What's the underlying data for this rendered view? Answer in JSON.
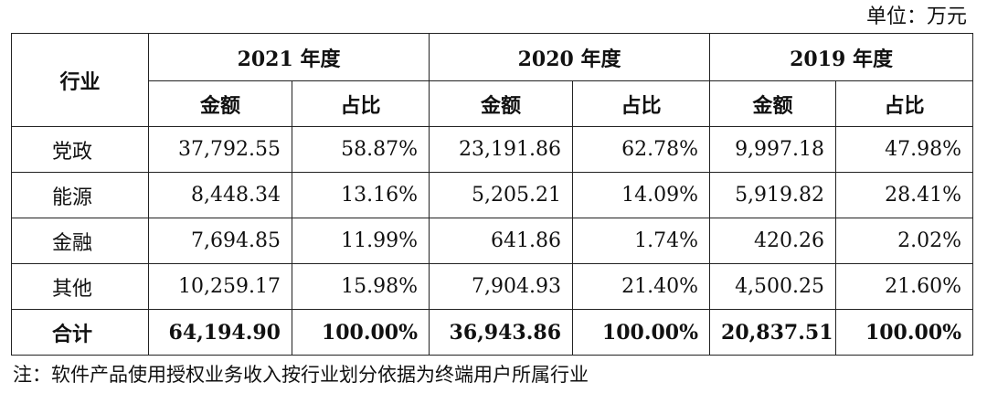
{
  "unit_label": "单位：万元",
  "table": {
    "industry_header": "行业",
    "years": [
      "2021 年度",
      "2020 年度",
      "2019 年度"
    ],
    "sub_headers": {
      "amount": "金额",
      "ratio": "占比"
    },
    "rows": [
      {
        "industry": "党政",
        "values": [
          "37,792.55",
          "58.87%",
          "23,191.86",
          "62.78%",
          "9,997.18",
          "47.98%"
        ]
      },
      {
        "industry": "能源",
        "values": [
          "8,448.34",
          "13.16%",
          "5,205.21",
          "14.09%",
          "5,919.82",
          "28.41%"
        ]
      },
      {
        "industry": "金融",
        "values": [
          "7,694.85",
          "11.99%",
          "641.86",
          "1.74%",
          "420.26",
          "2.02%"
        ]
      },
      {
        "industry": "其他",
        "values": [
          "10,259.17",
          "15.98%",
          "7,904.93",
          "21.40%",
          "4,500.25",
          "21.60%"
        ]
      }
    ],
    "total": {
      "industry": "合计",
      "values": [
        "64,194.90",
        "100.00%",
        "36,943.86",
        "100.00%",
        "20,837.51",
        "100.00%"
      ]
    }
  },
  "note": "注：软件产品使用授权业务收入按行业划分依据为终端用户所属行业"
}
